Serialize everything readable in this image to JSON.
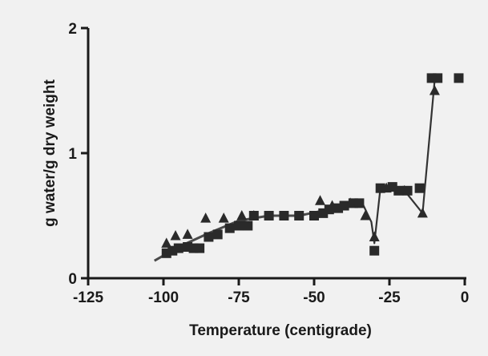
{
  "chart_data": {
    "type": "scatter",
    "xlabel": "Temperature (centigrade)",
    "ylabel": "g water/g dry weight",
    "xlim": [
      -125,
      0
    ],
    "ylim": [
      0,
      2
    ],
    "x_ticks": [
      -125,
      -100,
      -75,
      -50,
      -25,
      0
    ],
    "x_tick_labels": [
      "-125",
      "-100",
      "-75",
      "-50",
      "-25",
      "0"
    ],
    "y_ticks": [
      0,
      1,
      2
    ],
    "y_tick_labels": [
      "0",
      "1",
      "2"
    ],
    "grid": false,
    "legend": "none",
    "series": [
      {
        "marker": "square",
        "color": "#2a2a2a",
        "points": [
          {
            "x": -99,
            "y": 0.2
          },
          {
            "x": -97,
            "y": 0.22
          },
          {
            "x": -95,
            "y": 0.24
          },
          {
            "x": -92,
            "y": 0.25
          },
          {
            "x": -90,
            "y": 0.24
          },
          {
            "x": -88,
            "y": 0.24
          },
          {
            "x": -85,
            "y": 0.33
          },
          {
            "x": -82,
            "y": 0.35
          },
          {
            "x": -78,
            "y": 0.4
          },
          {
            "x": -75,
            "y": 0.42
          },
          {
            "x": -72,
            "y": 0.42
          },
          {
            "x": -70,
            "y": 0.5
          },
          {
            "x": -65,
            "y": 0.5
          },
          {
            "x": -60,
            "y": 0.5
          },
          {
            "x": -55,
            "y": 0.5
          },
          {
            "x": -50,
            "y": 0.5
          },
          {
            "x": -47,
            "y": 0.52
          },
          {
            "x": -45,
            "y": 0.55
          },
          {
            "x": -42,
            "y": 0.56
          },
          {
            "x": -40,
            "y": 0.58
          },
          {
            "x": -37,
            "y": 0.6
          },
          {
            "x": -35,
            "y": 0.6
          },
          {
            "x": -30,
            "y": 0.22
          },
          {
            "x": -28,
            "y": 0.72
          },
          {
            "x": -24,
            "y": 0.73
          },
          {
            "x": -22,
            "y": 0.7
          },
          {
            "x": -19,
            "y": 0.7
          },
          {
            "x": -15,
            "y": 0.72
          },
          {
            "x": -11,
            "y": 1.6
          },
          {
            "x": -9,
            "y": 1.6
          },
          {
            "x": -2,
            "y": 1.6
          }
        ]
      },
      {
        "marker": "triangle",
        "color": "#2a2a2a",
        "points": [
          {
            "x": -99,
            "y": 0.28
          },
          {
            "x": -96,
            "y": 0.34
          },
          {
            "x": -92,
            "y": 0.35
          },
          {
            "x": -86,
            "y": 0.48
          },
          {
            "x": -80,
            "y": 0.48
          },
          {
            "x": -74,
            "y": 0.5
          },
          {
            "x": -70,
            "y": 0.5
          },
          {
            "x": -48,
            "y": 0.62
          },
          {
            "x": -44,
            "y": 0.58
          },
          {
            "x": -38,
            "y": 0.6
          },
          {
            "x": -33,
            "y": 0.5
          },
          {
            "x": -30,
            "y": 0.33
          },
          {
            "x": -26,
            "y": 0.72
          },
          {
            "x": -20,
            "y": 0.7
          },
          {
            "x": -14,
            "y": 0.52
          },
          {
            "x": -10,
            "y": 1.5
          }
        ]
      }
    ],
    "connector": {
      "description_points": [
        {
          "x": -34,
          "y": 0.6
        },
        {
          "x": -31,
          "y": 0.45
        },
        {
          "x": -30,
          "y": 0.28
        },
        {
          "x": -28,
          "y": 0.72
        },
        {
          "x": -20,
          "y": 0.7
        },
        {
          "x": -14,
          "y": 0.52
        },
        {
          "x": -10,
          "y": 1.58
        }
      ]
    },
    "fit_line": {
      "points": [
        {
          "x": -103,
          "y": 0.14
        },
        {
          "x": -95,
          "y": 0.25
        },
        {
          "x": -85,
          "y": 0.36
        },
        {
          "x": -75,
          "y": 0.46
        },
        {
          "x": -65,
          "y": 0.5
        },
        {
          "x": -55,
          "y": 0.5
        },
        {
          "x": -45,
          "y": 0.55
        },
        {
          "x": -38,
          "y": 0.6
        },
        {
          "x": -34,
          "y": 0.6
        }
      ]
    }
  }
}
